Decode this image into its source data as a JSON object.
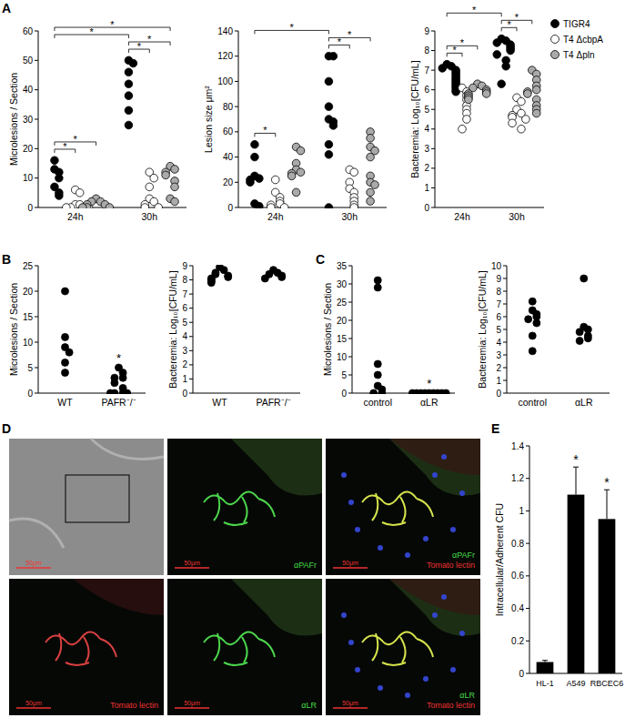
{
  "panel_labels": [
    "A",
    "B",
    "C",
    "D",
    "E"
  ],
  "chart_data": [
    {
      "type": "strip",
      "ylabel": "Microlesions / Section",
      "categories": [
        "24h",
        "30h"
      ],
      "ylim": [
        0,
        60
      ],
      "yticks": [
        0,
        10,
        20,
        30,
        40,
        50,
        60
      ],
      "grid": false,
      "marker": "circle",
      "series": [
        {
          "color": "#000000",
          "values": [
            [
              16,
              13,
              12,
              10,
              7,
              5,
              4
            ],
            [
              50,
              49,
              46,
              42,
              38,
              33,
              28
            ]
          ]
        },
        {
          "color": "#ffffff",
          "values": [
            [
              6,
              5,
              1,
              1,
              0,
              0,
              0,
              0
            ],
            [
              12,
              10,
              7,
              3,
              2,
              1,
              0,
              0
            ]
          ]
        },
        {
          "color": "#aaaaaa",
          "values": [
            [
              3,
              2,
              2,
              1,
              1,
              0,
              0,
              0
            ],
            [
              14,
              13,
              12,
              11,
              9,
              7,
              3,
              2
            ]
          ]
        }
      ],
      "annotations": [
        {
          "text": "*",
          "from": [
            0,
            0
          ],
          "to": [
            0,
            1
          ]
        },
        {
          "text": "*",
          "from": [
            0,
            0
          ],
          "to": [
            0,
            2
          ]
        },
        {
          "text": "*",
          "from": [
            1,
            0
          ],
          "to": [
            1,
            1
          ]
        },
        {
          "text": "*",
          "from": [
            1,
            0
          ],
          "to": [
            1,
            2
          ]
        },
        {
          "text": "*",
          "from": [
            0,
            0
          ],
          "to": [
            1,
            0
          ]
        },
        {
          "text": "*",
          "from": [
            0,
            0
          ],
          "to": [
            1,
            2
          ]
        }
      ]
    },
    {
      "type": "strip",
      "ylabel": "Lesion size μm²",
      "categories": [
        "24h",
        "30h"
      ],
      "ylim": [
        0,
        140
      ],
      "yticks": [
        0,
        20,
        40,
        60,
        80,
        100,
        120,
        140
      ],
      "grid": false,
      "marker": "circle",
      "series": [
        {
          "color": "#000000",
          "values": [
            [
              50,
              40,
              25,
              23,
              22,
              20,
              3,
              1
            ],
            [
              120,
              120,
              100,
              80,
              70,
              68,
              65,
              50,
              42,
              0
            ]
          ]
        },
        {
          "color": "#ffffff",
          "values": [
            [
              22,
              12,
              8,
              5,
              3,
              2,
              0,
              0
            ],
            [
              30,
              28,
              20,
              15,
              12,
              8,
              5,
              2,
              0
            ]
          ]
        },
        {
          "color": "#aaaaaa",
          "values": [
            [
              48,
              45,
              35,
              30,
              28,
              27,
              25,
              12
            ],
            [
              60,
              55,
              48,
              45,
              40,
              25,
              20,
              18,
              12,
              5
            ]
          ]
        }
      ],
      "annotations": [
        {
          "text": "*",
          "from": [
            0,
            0
          ],
          "to": [
            0,
            1
          ]
        },
        {
          "text": "*",
          "from": [
            1,
            0
          ],
          "to": [
            1,
            1
          ]
        },
        {
          "text": "*",
          "from": [
            1,
            0
          ],
          "to": [
            1,
            2
          ]
        },
        {
          "text": "*",
          "from": [
            0,
            0
          ],
          "to": [
            1,
            0
          ]
        }
      ]
    },
    {
      "type": "strip",
      "ylabel": "Bacteremia: Log₁₀[CFU/mL]",
      "categories": [
        "24h",
        "30h"
      ],
      "ylim": [
        0,
        9
      ],
      "yticks": [
        0,
        1,
        2,
        3,
        4,
        5,
        6,
        7,
        8,
        9
      ],
      "grid": false,
      "marker": "circle",
      "legend": "right",
      "series": [
        {
          "name": "TIGR4",
          "color": "#000000",
          "values": [
            [
              7.3,
              7.2,
              7.1,
              7.0,
              6.9,
              6.8,
              6.7,
              6.6,
              6.5,
              6.4,
              6.3,
              6.2,
              6.1,
              6.0,
              5.9
            ],
            [
              8.6,
              8.5,
              8.4,
              8.3,
              8.2,
              8.1,
              8.0,
              7.8,
              7.5,
              7.2,
              6.3
            ]
          ]
        },
        {
          "name": "T4 ΔcbpA",
          "color": "#ffffff",
          "values": [
            [
              6.1,
              5.9,
              5.7,
              5.5,
              5.2,
              5.0,
              4.8,
              4.5,
              4.0
            ],
            [
              5.6,
              5.4,
              5.0,
              4.8,
              4.7,
              4.6,
              4.5,
              4.3,
              4.0
            ]
          ]
        },
        {
          "name": "T4 Δpln",
          "color": "#aaaaaa",
          "values": [
            [
              6.3,
              6.2,
              6.1,
              6.0,
              5.9,
              5.8,
              5.8,
              5.7,
              5.6,
              5.5
            ],
            [
              7.0,
              6.8,
              6.5,
              6.2,
              6.0,
              5.9,
              5.8,
              5.5,
              5.2,
              5.0,
              4.8
            ]
          ]
        }
      ],
      "annotations": [
        {
          "text": "*",
          "from": [
            0,
            0
          ],
          "to": [
            0,
            1
          ]
        },
        {
          "text": "*",
          "from": [
            0,
            0
          ],
          "to": [
            0,
            2
          ]
        },
        {
          "text": "*",
          "from": [
            1,
            0
          ],
          "to": [
            1,
            1
          ]
        },
        {
          "text": "*",
          "from": [
            1,
            0
          ],
          "to": [
            1,
            2
          ]
        },
        {
          "text": "*",
          "from": [
            0,
            0
          ],
          "to": [
            1,
            0
          ]
        }
      ]
    },
    {
      "type": "strip",
      "ylabel": "Microlesions / Section",
      "categories": [
        "WT",
        "PAFR⁻/⁻"
      ],
      "ylim": [
        0,
        25
      ],
      "yticks": [
        0,
        5,
        10,
        15,
        20,
        25
      ],
      "grid": false,
      "marker": "circle",
      "series": [
        {
          "color": "#000000",
          "values": [
            [
              20,
              11,
              9,
              8,
              6,
              4
            ],
            [
              5,
              4,
              3,
              3,
              2,
              1,
              0,
              0,
              0,
              0
            ]
          ]
        }
      ],
      "annotations": [
        {
          "text": "*",
          "category": 1
        }
      ]
    },
    {
      "type": "strip",
      "ylabel": "Bacteremia: Log₁₀[CFU/mL]",
      "categories": [
        "WT",
        "PAFR⁻/⁻"
      ],
      "ylim": [
        0,
        9
      ],
      "yticks": [
        0,
        1,
        2,
        3,
        4,
        5,
        6,
        7,
        8,
        9
      ],
      "grid": false,
      "marker": "circle",
      "series": [
        {
          "color": "#000000",
          "values": [
            [
              8.9,
              8.7,
              8.5,
              8.4,
              8.3,
              8.2,
              8.1,
              8.0,
              7.9,
              7.8
            ],
            [
              8.7,
              8.5,
              8.4,
              8.3,
              8.2,
              8.1
            ]
          ]
        }
      ]
    },
    {
      "type": "strip",
      "ylabel": "Microlesions / Section",
      "categories": [
        "control",
        "αLR"
      ],
      "ylim": [
        0,
        35
      ],
      "yticks": [
        0,
        5,
        10,
        15,
        20,
        25,
        30,
        35
      ],
      "grid": false,
      "marker": "circle",
      "series": [
        {
          "color": "#000000",
          "values": [
            [
              31,
              29,
              8,
              5,
              2,
              1,
              0,
              0
            ],
            [
              0,
              0,
              0,
              0,
              0,
              0,
              0,
              0,
              0
            ]
          ]
        }
      ],
      "annotations": [
        {
          "text": "*",
          "category": 1
        }
      ]
    },
    {
      "type": "strip",
      "ylabel": "Bacteremia: Log₁₀[CFU/mL]",
      "categories": [
        "control",
        "αLR"
      ],
      "ylim": [
        0,
        10
      ],
      "yticks": [
        0,
        1,
        2,
        3,
        4,
        5,
        6,
        7,
        8,
        9,
        10
      ],
      "grid": false,
      "marker": "circle",
      "series": [
        {
          "color": "#000000",
          "values": [
            [
              7.2,
              6.5,
              6.2,
              6.0,
              5.8,
              5.5,
              4.5,
              3.3
            ],
            [
              9.0,
              5.2,
              5.0,
              4.8,
              4.5,
              4.3,
              4.1
            ]
          ]
        }
      ]
    },
    {
      "type": "bar",
      "ylabel": "Intracellular/Adherent CFU",
      "categories": [
        "HL-1",
        "A549",
        "RBCEC6"
      ],
      "values": [
        0.07,
        1.1,
        0.95
      ],
      "errors": [
        0.01,
        0.17,
        0.18
      ],
      "color": "#000000",
      "ylim": [
        0,
        1.4
      ],
      "yticks": [
        0,
        0.2,
        0.4,
        0.6,
        0.8,
        1,
        1.2,
        1.4
      ],
      "grid": false,
      "annotations": [
        {
          "text": "*",
          "category": 1
        },
        {
          "text": "*",
          "category": 2
        }
      ]
    }
  ],
  "micrographs": {
    "scale_bar": "50μm",
    "tiles": [
      {
        "labels": []
      },
      {
        "labels": [
          {
            "text": "αPAFr",
            "color": "#44dd44"
          }
        ]
      },
      {
        "labels": [
          {
            "text": "αPAFr",
            "color": "#44dd44"
          },
          {
            "text": "Tomato lectin",
            "color": "#ee3333"
          }
        ]
      },
      {
        "labels": [
          {
            "text": "Tomato lectin",
            "color": "#ee3333"
          }
        ]
      },
      {
        "labels": [
          {
            "text": "αLR",
            "color": "#44dd44"
          }
        ]
      },
      {
        "labels": [
          {
            "text": "αLR",
            "color": "#44dd44"
          },
          {
            "text": "Tomato lectin",
            "color": "#ee3333"
          }
        ]
      }
    ]
  }
}
